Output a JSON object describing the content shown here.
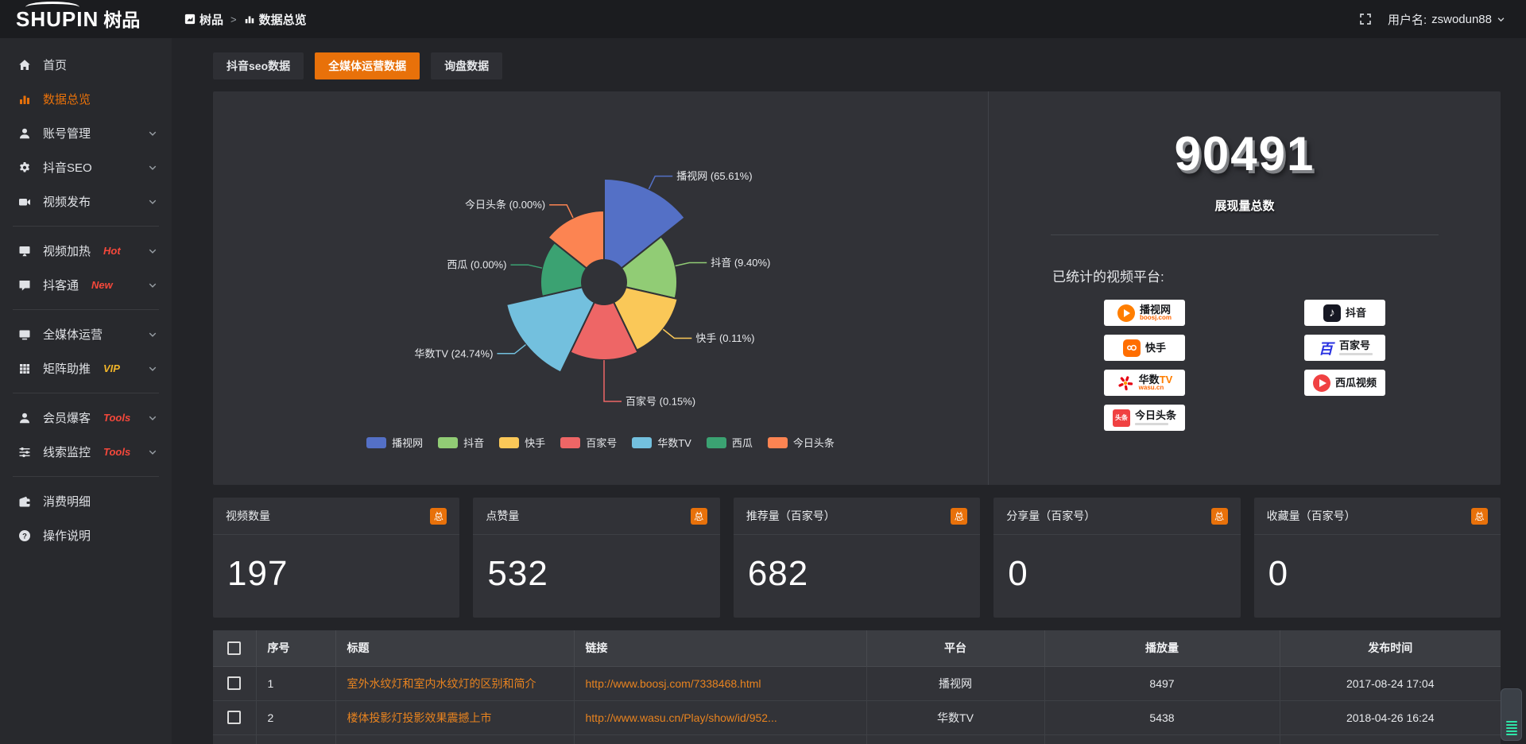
{
  "topbar": {
    "logo_en": "SHUPIN",
    "logo_cn": "树品",
    "breadcrumb_root": "树品",
    "breadcrumb_separator": ">",
    "breadcrumb_current": "数据总览",
    "user_label": "用户名:",
    "user_name": "zswodun88"
  },
  "sidebar": {
    "items": [
      {
        "id": "home",
        "icon": "home",
        "label": "首页"
      },
      {
        "id": "data-overview",
        "icon": "chart",
        "label": "数据总览",
        "active": true
      },
      {
        "id": "account-management",
        "icon": "user",
        "label": "账号管理",
        "chevron": true
      },
      {
        "id": "douyin-seo",
        "icon": "gear",
        "label": "抖音SEO",
        "chevron": true
      },
      {
        "id": "video-publish",
        "icon": "videocam",
        "label": "视频发布",
        "chevron": true
      },
      {
        "divider": true
      },
      {
        "id": "video-heating",
        "icon": "screen",
        "label": "视频加热",
        "tag": "Hot",
        "tag_color": "red",
        "chevron": true
      },
      {
        "id": "doketong",
        "icon": "chat",
        "label": "抖客通",
        "tag": "New",
        "tag_color": "red",
        "chevron": true
      },
      {
        "divider": true
      },
      {
        "id": "media-operations",
        "icon": "monitor",
        "label": "全媒体运营",
        "chevron": true
      },
      {
        "id": "matrix-boost",
        "icon": "grid",
        "label": "矩阵助推",
        "tag": "VIP",
        "tag_color": "yellow",
        "chevron": true
      },
      {
        "divider": true
      },
      {
        "id": "member-burst",
        "icon": "user",
        "label": "会员爆客",
        "tag": "Tools",
        "tag_color": "red",
        "chevron": true
      },
      {
        "id": "clue-monitoring",
        "icon": "sliders",
        "label": "线索监控",
        "tag": "Tools",
        "tag_color": "red",
        "chevron": true
      },
      {
        "divider": true
      },
      {
        "id": "consumption-details",
        "icon": "wallet",
        "label": "消费明细"
      },
      {
        "id": "instructions",
        "icon": "question",
        "label": "操作说明"
      }
    ]
  },
  "tabs": [
    {
      "label": "抖音seo数据",
      "active": false
    },
    {
      "label": "全媒体运营数据",
      "active": true
    },
    {
      "label": "询盘数据",
      "active": false
    }
  ],
  "chart_data": {
    "type": "pie",
    "variant": "nightingale-rose",
    "legend_position": "bottom",
    "label_format": "{name} ({pct}%)",
    "inner_radius_px": 28,
    "items": [
      {
        "name": "播视网",
        "pct": 65.61,
        "pct_label": "65.61%",
        "color": "#5470c6",
        "radius_px": 130
      },
      {
        "name": "抖音",
        "pct": 9.4,
        "pct_label": "9.40%",
        "color": "#91cc75",
        "radius_px": 92
      },
      {
        "name": "快手",
        "pct": 0.11,
        "pct_label": "0.11%",
        "color": "#fac858",
        "radius_px": 95
      },
      {
        "name": "百家号",
        "pct": 0.15,
        "pct_label": "0.15%",
        "color": "#ee6666",
        "radius_px": 98
      },
      {
        "name": "华数TV",
        "pct": 24.74,
        "pct_label": "24.74%",
        "color": "#73c0de",
        "radius_px": 126
      },
      {
        "name": "西瓜",
        "pct": 0.0,
        "pct_label": "0.00%",
        "color": "#3ba272",
        "radius_px": 80
      },
      {
        "name": "今日头条",
        "pct": 0.0,
        "pct_label": "0.00%",
        "color": "#fc8452",
        "radius_px": 90
      }
    ]
  },
  "overview": {
    "total_value": "90491",
    "total_label": "展现量总数",
    "platforms_label": "已统计的视频平台:",
    "badge_columns": [
      [
        {
          "id": "boosj",
          "name": "播视网",
          "sub": "boosj.com"
        },
        {
          "id": "kuaishou",
          "name": "快手"
        },
        {
          "id": "wasu",
          "name": "华数",
          "accent": "TV",
          "sub": "wasu.cn"
        },
        {
          "id": "toutiao",
          "name": "今日头条",
          "logo_text": "头条",
          "subline": true
        }
      ],
      [
        {
          "id": "douyin",
          "name": "抖音"
        },
        {
          "id": "baijia",
          "name": "百家号",
          "logo_text": "百",
          "subline": true
        },
        {
          "id": "xigua",
          "name": "西瓜视频"
        }
      ]
    ]
  },
  "stat_cards": [
    {
      "title": "视频数量",
      "badge": "总",
      "value": "197"
    },
    {
      "title": "点赞量",
      "badge": "总",
      "value": "532"
    },
    {
      "title": "推荐量（百家号）",
      "badge": "总",
      "value": "682"
    },
    {
      "title": "分享量（百家号）",
      "badge": "总",
      "value": "0"
    },
    {
      "title": "收藏量（百家号）",
      "badge": "总",
      "value": "0"
    }
  ],
  "table": {
    "headers": [
      "序号",
      "标题",
      "链接",
      "平台",
      "播放量",
      "发布时间"
    ],
    "rows": [
      {
        "no": "1",
        "title": "室外水纹灯和室内水纹灯的区别和简介",
        "link": "http://www.boosj.com/7338468.html",
        "platform": "播视网",
        "plays": "8497",
        "time": "2017-08-24 17:04"
      },
      {
        "no": "2",
        "title": "楼体投影灯投影效果震撼上市",
        "link": "http://www.wasu.cn/Play/show/id/952...",
        "platform": "华数TV",
        "plays": "5438",
        "time": "2018-04-26 16:24"
      },
      {
        "no": "",
        "title": "",
        "link": "",
        "platform": "",
        "plays": "",
        "time": "",
        "partial": true
      }
    ]
  }
}
